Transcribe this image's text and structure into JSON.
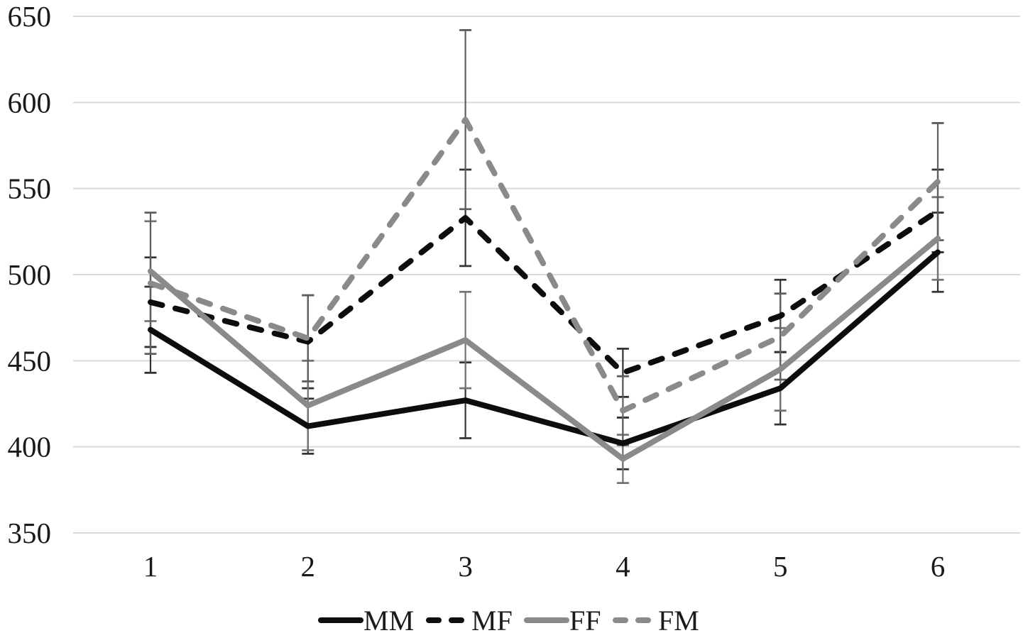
{
  "chart_data": {
    "type": "line",
    "title": "",
    "xlabel": "",
    "ylabel": "",
    "x": [
      1,
      2,
      3,
      4,
      5,
      6
    ],
    "x_tick_labels": [
      "1",
      "2",
      "3",
      "4",
      "5",
      "6"
    ],
    "y_ticks": [
      350,
      400,
      450,
      500,
      550,
      600,
      650
    ],
    "ylim": [
      350,
      650
    ],
    "grid": "horizontal-only",
    "legend_position": "bottom-center",
    "has_error_bars": true,
    "series": [
      {
        "name": "MM",
        "line_style": "solid",
        "color": "#0d0d0d",
        "error_color": "#333333",
        "values": [
          468,
          412,
          427,
          402,
          434,
          513
        ],
        "errors": [
          25,
          16,
          22,
          15,
          21,
          23
        ]
      },
      {
        "name": "MF",
        "line_style": "dashed",
        "color": "#0d0d0d",
        "error_color": "#333333",
        "values": [
          484,
          461,
          533,
          443,
          476,
          537
        ],
        "errors": [
          26,
          27,
          28,
          14,
          21,
          24
        ]
      },
      {
        "name": "FF",
        "line_style": "solid",
        "color": "#8a8a8a",
        "error_color": "#737373",
        "values": [
          502,
          424,
          462,
          393,
          445,
          521
        ],
        "errors": [
          29,
          26,
          28,
          14,
          24,
          24
        ]
      },
      {
        "name": "FM",
        "line_style": "dashed",
        "color": "#8a8a8a",
        "error_color": "#5e5e5e",
        "values": [
          495,
          463,
          590,
          421,
          464,
          554
        ],
        "errors": [
          41,
          25,
          52,
          20,
          25,
          34
        ]
      }
    ],
    "colors": {
      "background": "#ffffff",
      "gridline": "#d9d9d9",
      "tick_label": "#1a1a1a"
    }
  }
}
